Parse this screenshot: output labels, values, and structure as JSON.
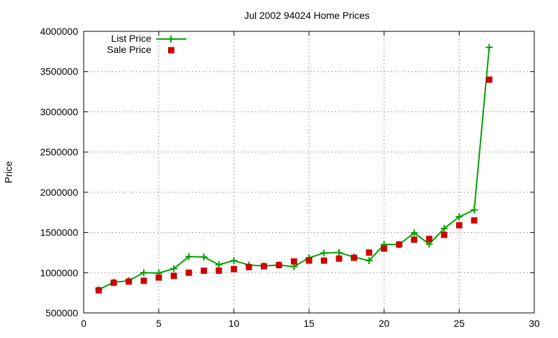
{
  "chart_data": {
    "type": "line",
    "title": "Jul 2002 94024 Home Prices",
    "xlabel": "",
    "ylabel": "Price",
    "xlim": [
      0,
      30
    ],
    "ylim": [
      500000,
      4000000
    ],
    "xticks": [
      0,
      5,
      10,
      15,
      20,
      25,
      30
    ],
    "yticks": [
      500000,
      1000000,
      1500000,
      2000000,
      2500000,
      3000000,
      3500000,
      4000000
    ],
    "grid": true,
    "legend_position": "top-left",
    "x": [
      1,
      2,
      3,
      4,
      5,
      6,
      7,
      8,
      9,
      10,
      11,
      12,
      13,
      14,
      15,
      16,
      17,
      18,
      19,
      20,
      21,
      22,
      23,
      24,
      25,
      26,
      27
    ],
    "series": [
      {
        "name": "List Price",
        "style": "linespoints",
        "color": "#00a000",
        "values": [
          790000,
          880000,
          900000,
          1000000,
          995000,
          1050000,
          1200000,
          1195000,
          1100000,
          1150000,
          1095000,
          1085000,
          1095000,
          1075000,
          1185000,
          1245000,
          1250000,
          1195000,
          1150000,
          1350000,
          1350000,
          1495000,
          1355000,
          1550000,
          1695000,
          1780000,
          3800000
        ]
      },
      {
        "name": "Sale Price",
        "style": "points",
        "color": "#d00000",
        "values": [
          780000,
          875000,
          890000,
          900000,
          940000,
          960000,
          1000000,
          1025000,
          1025000,
          1045000,
          1070000,
          1080000,
          1095000,
          1140000,
          1150000,
          1150000,
          1175000,
          1185000,
          1250000,
          1300000,
          1350000,
          1410000,
          1420000,
          1470000,
          1590000,
          1650000,
          3400000
        ]
      }
    ]
  }
}
